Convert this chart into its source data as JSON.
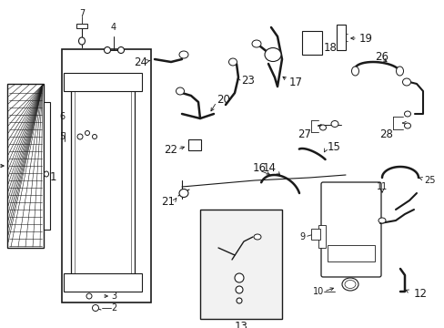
{
  "bg_color": "#ffffff",
  "line_color": "#1a1a1a",
  "fig_width": 4.89,
  "fig_height": 3.6,
  "dpi": 100,
  "font_size": 7.0,
  "font_size_large": 8.5
}
